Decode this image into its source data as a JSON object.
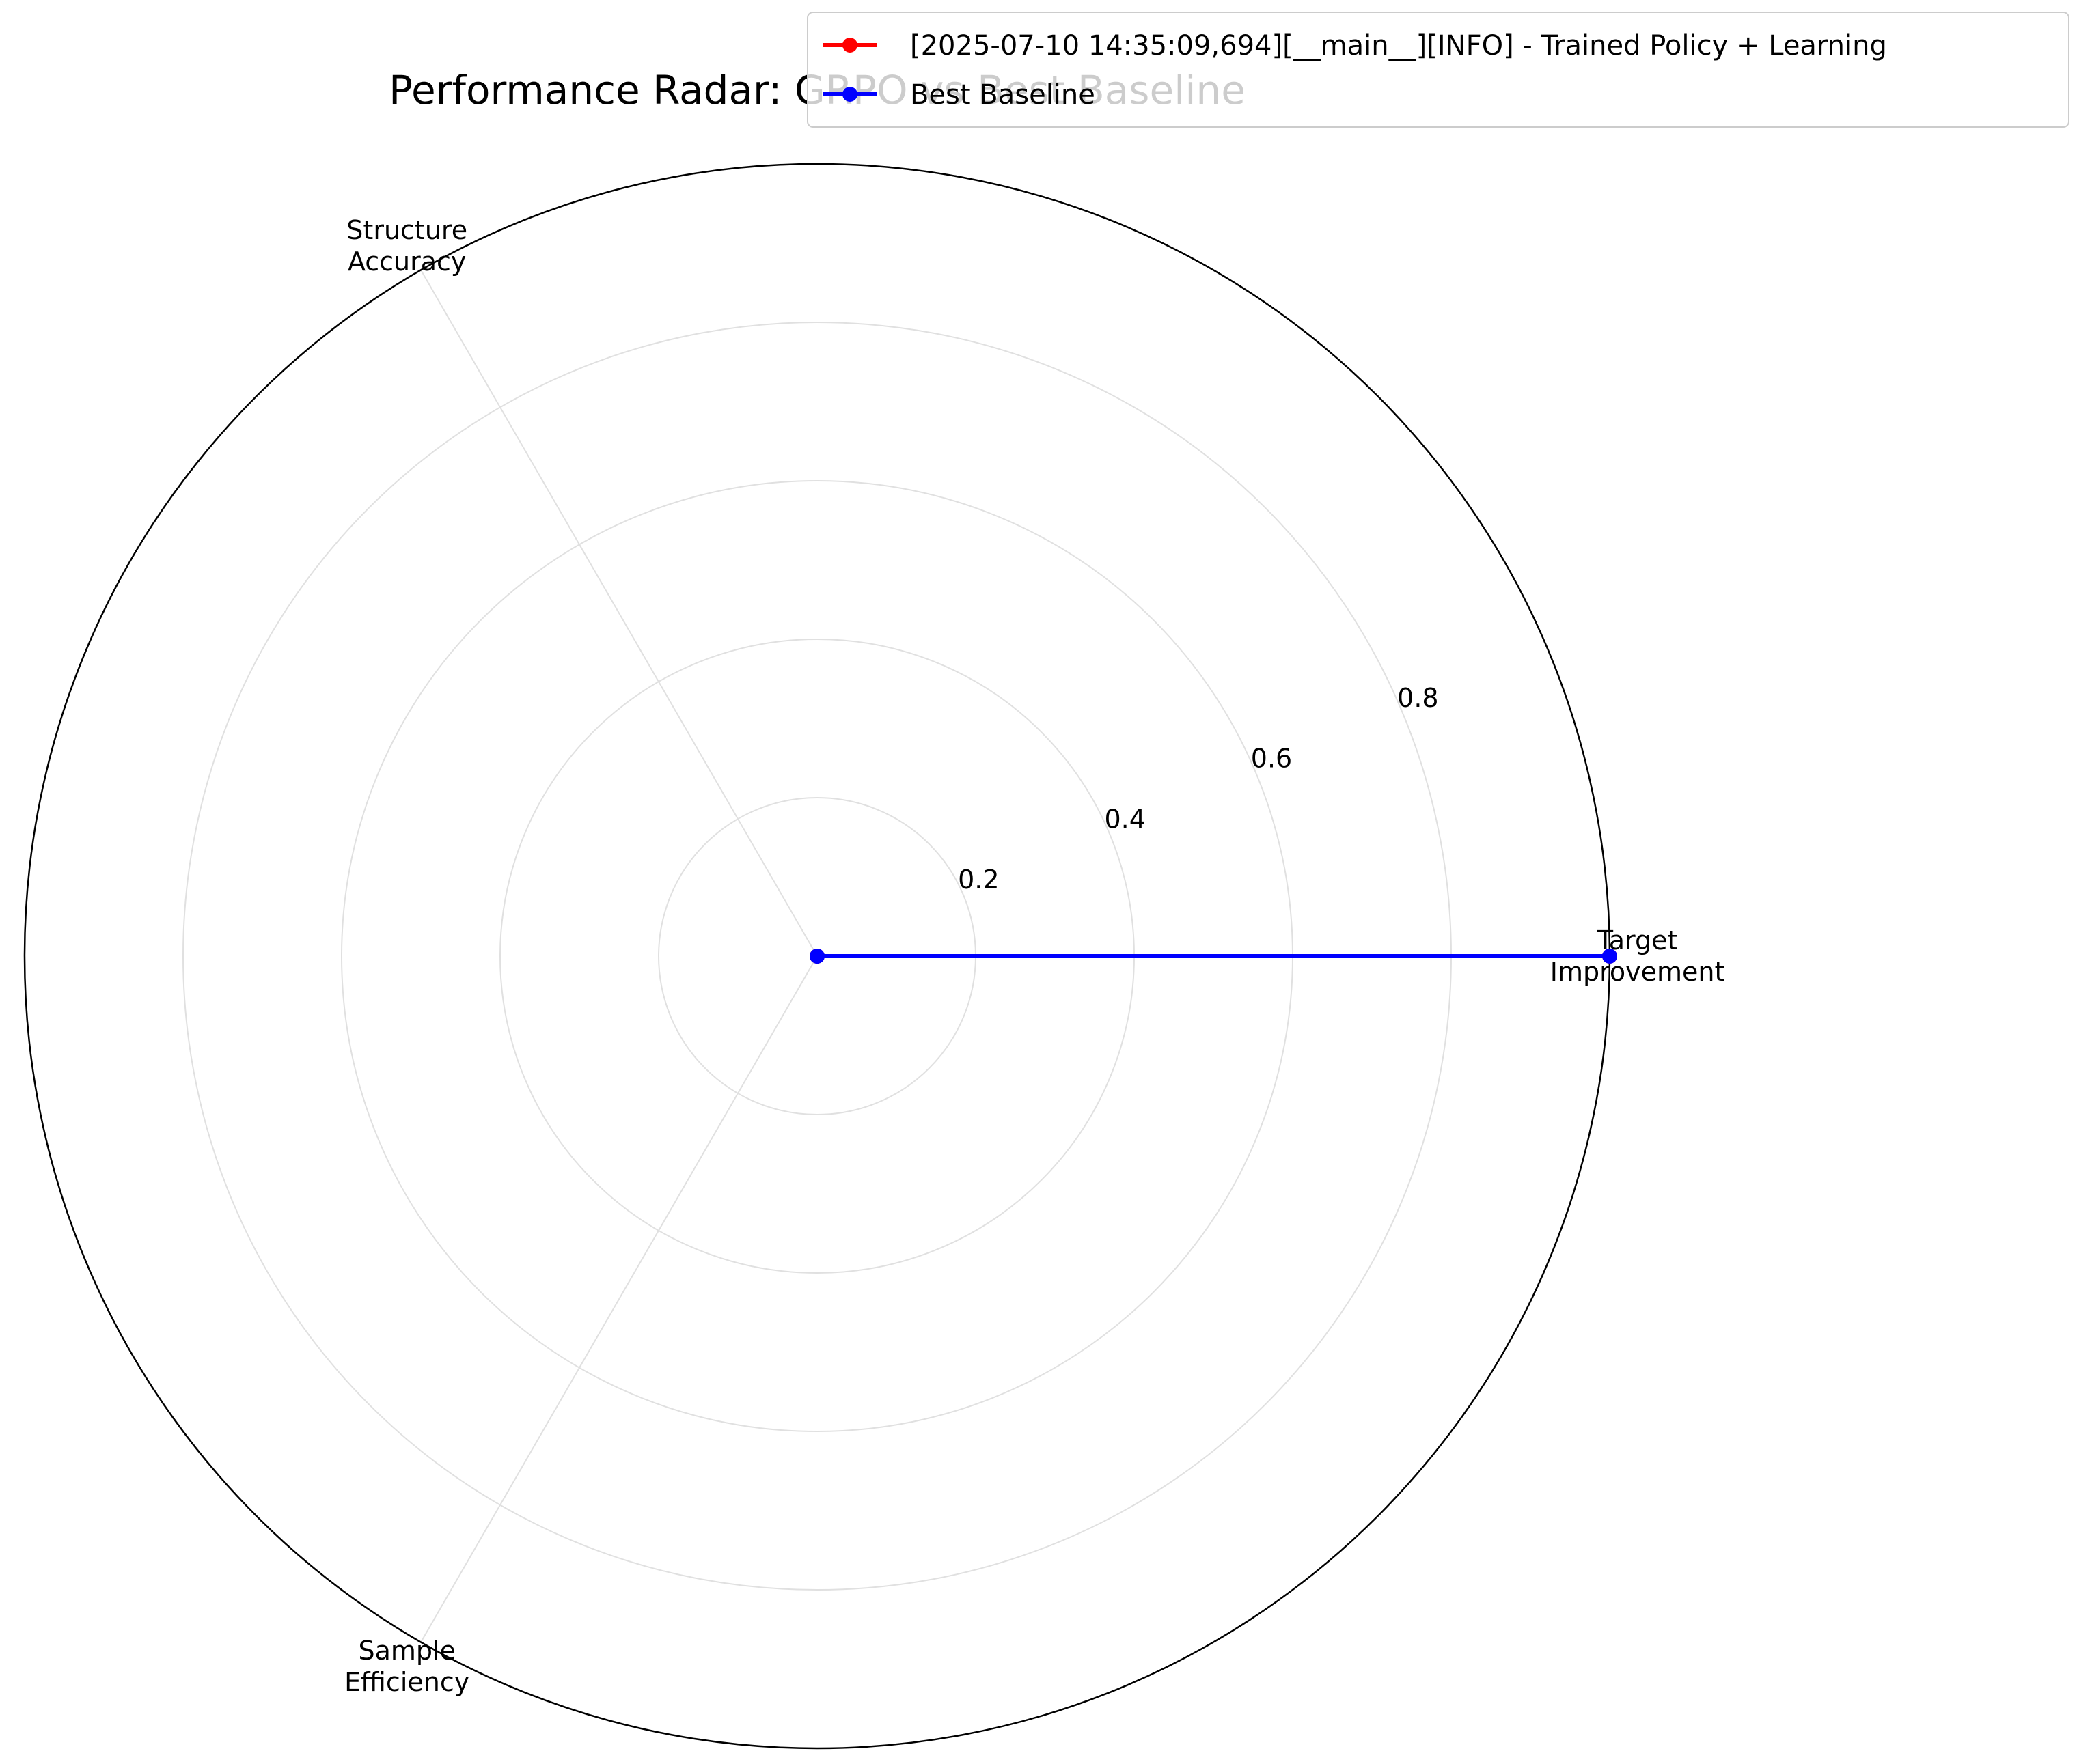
{
  "chart_data": {
    "type": "radar",
    "title": "Performance Radar: GRPO vs Best Baseline",
    "axes": [
      "Target\nImprovement",
      "Structure\nAccuracy",
      "Sample\nEfficiency"
    ],
    "rticks": [
      0.2,
      0.4,
      0.6,
      0.8
    ],
    "rtick_labels": [
      "0.2",
      "0.4",
      "0.6",
      "0.8"
    ],
    "rlim": [
      0,
      1.0
    ],
    "grid": true,
    "legend_position": "top-right",
    "series": [
      {
        "name": "[2025-07-10 14:35:09,694][__main__][INFO] -   Trained Policy + Learning",
        "color": "#ff0000",
        "values": [
          1.0,
          0.0,
          0.0
        ]
      },
      {
        "name": "Best Baseline",
        "color": "#0000ff",
        "values": [
          1.0,
          0.0,
          0.0
        ]
      }
    ]
  }
}
